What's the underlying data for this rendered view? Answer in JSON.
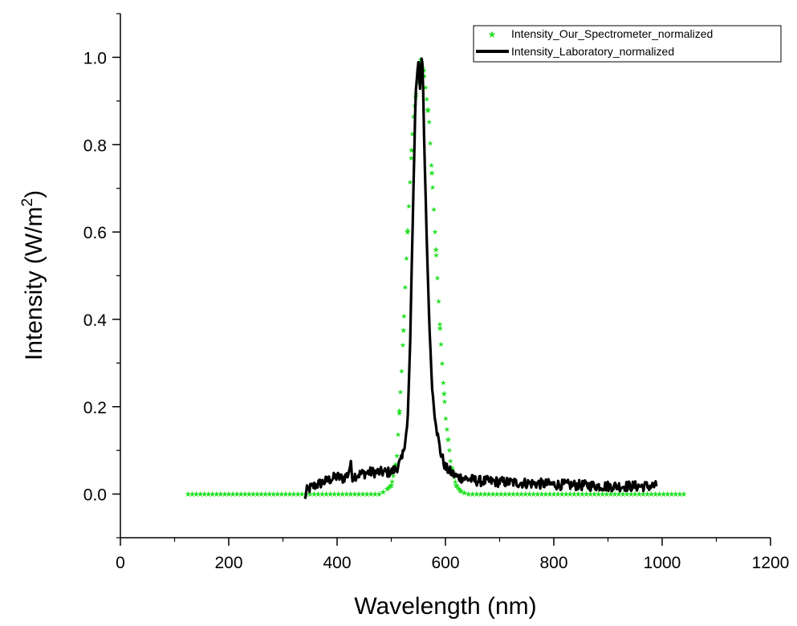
{
  "chart_data": {
    "type": "line",
    "xlabel": "Wavelength (nm)",
    "ylabel": "Intensity (W/m",
    "ylabel_superscript": "2",
    "ylabel_suffix": ")",
    "xlim": [
      0,
      1200
    ],
    "ylim": [
      -0.1,
      1.1
    ],
    "xticks": [
      0,
      200,
      400,
      600,
      800,
      1000,
      1200
    ],
    "yticks": [
      0.0,
      0.2,
      0.4,
      0.6,
      0.8,
      1.0
    ],
    "xtick_labels": [
      "0",
      "200",
      "400",
      "600",
      "800",
      "1000",
      "1200"
    ],
    "ytick_labels": [
      "0.0",
      "0.2",
      "0.4",
      "0.6",
      "0.8",
      "1.0"
    ],
    "grid": false,
    "legend_position": "top-right",
    "series": [
      {
        "name": "Intensity_Our_Spectrometer_normalized",
        "style": "dotted-stars",
        "color": "#22e022",
        "x": [
          125,
          480,
          500,
          510,
          520,
          530,
          540,
          550,
          555,
          560,
          570,
          580,
          590,
          600,
          610,
          620,
          630,
          640,
          1040
        ],
        "y": [
          0.0,
          0.0,
          0.02,
          0.08,
          0.3,
          0.6,
          0.85,
          0.97,
          1.0,
          0.97,
          0.85,
          0.62,
          0.38,
          0.18,
          0.07,
          0.02,
          0.005,
          0.0,
          0.0
        ]
      },
      {
        "name": "Intensity_Laboratory_normalized",
        "style": "solid-thick",
        "color": "#000000",
        "x": [
          340,
          345,
          360,
          380,
          400,
          410,
          420,
          425,
          428,
          440,
          460,
          480,
          500,
          510,
          520,
          530,
          535,
          540,
          545,
          550,
          553,
          556,
          558,
          560,
          565,
          570,
          575,
          580,
          590,
          600,
          610,
          620,
          640,
          660,
          700,
          750,
          800,
          850,
          900,
          950,
          990
        ],
        "y": [
          -0.01,
          0.01,
          0.02,
          0.03,
          0.04,
          0.035,
          0.045,
          0.07,
          0.04,
          0.045,
          0.05,
          0.05,
          0.05,
          0.06,
          0.08,
          0.16,
          0.35,
          0.65,
          0.92,
          0.99,
          0.93,
          1.0,
          0.98,
          0.85,
          0.6,
          0.4,
          0.25,
          0.18,
          0.1,
          0.06,
          0.05,
          0.04,
          0.035,
          0.03,
          0.028,
          0.025,
          0.022,
          0.02,
          0.018,
          0.018,
          0.018
        ]
      }
    ]
  }
}
